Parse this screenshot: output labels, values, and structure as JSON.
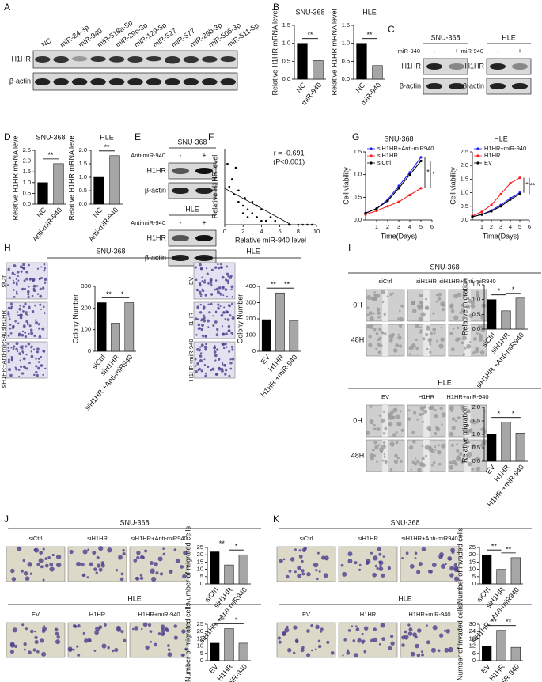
{
  "panel_labels": [
    "A",
    "B",
    "C",
    "D",
    "E",
    "F",
    "G",
    "H",
    "I",
    "J",
    "K"
  ],
  "blot_A": {
    "lanes": [
      "NC",
      "miR-24-3p",
      "miR-940",
      "miR-518a-5p",
      "miR-29c-3p",
      "miR-129-5p",
      "miR-527",
      "miR-577",
      "miR-29b-3p",
      "miR-506-3p",
      "miR-511-5p"
    ],
    "rows": [
      "H1HR",
      "β-actin"
    ]
  },
  "blot_C": {
    "groups": [
      {
        "title": "SNU-368",
        "treatment": "miR-940",
        "lanes": [
          "-",
          "+"
        ],
        "rows": [
          "H1HR",
          "β-actin"
        ]
      },
      {
        "title": "HLE",
        "treatment": "miR-940",
        "lanes": [
          "-",
          "+"
        ],
        "rows": [
          "H1HR",
          "β-actin"
        ]
      }
    ]
  },
  "blot_E": {
    "groups": [
      {
        "title": "SNU-368",
        "treatment": "Anti-miR-940",
        "lanes": [
          "-",
          "+"
        ],
        "rows": [
          "H1HR",
          "β-actin"
        ]
      },
      {
        "title": "HLE",
        "treatment": "Anti-miR-940",
        "lanes": [
          "-",
          "+"
        ],
        "rows": [
          "H1HR",
          "β-actin"
        ]
      }
    ]
  },
  "images_H": {
    "groups": [
      {
        "title": "SNU-368",
        "rows": [
          "siCtrl",
          "siH1HR",
          "siH1HR+Anti-miR940"
        ]
      },
      {
        "title": "HLE",
        "rows": [
          "EV",
          "H1HR",
          "H1HR+miR-940"
        ]
      }
    ]
  },
  "images_I": {
    "groups": [
      {
        "title": "SNU-368",
        "columns": [
          "siCtrl",
          "siH1HR",
          "siH1HR+Anti-miR940"
        ],
        "times": [
          "0H",
          "48H"
        ]
      },
      {
        "title": "HLE",
        "columns": [
          "EV",
          "H1HR",
          "H1HR+miR-940"
        ],
        "times": [
          "0H",
          "48H"
        ]
      }
    ]
  },
  "images_J": {
    "groups": [
      {
        "title": "SNU-368",
        "columns": [
          "siCtrl",
          "siH1HR",
          "siH1HR+Anti-miR940"
        ]
      },
      {
        "title": "HLE",
        "columns": [
          "EV",
          "H1HR",
          "H1HR+miR-940"
        ]
      }
    ]
  },
  "images_K": {
    "groups": [
      {
        "title": "SNU-368",
        "columns": [
          "siCtrl",
          "siH1HR",
          "siH1HR+Anti-miR940"
        ]
      },
      {
        "title": "HLE",
        "columns": [
          "EV",
          "H1HR",
          "H1HR+miR-940"
        ]
      }
    ]
  },
  "chart_data": [
    {
      "type": "bar",
      "title": "SNU-368",
      "ylabel": "Relative H1HR mRNA level",
      "categories": [
        "NC",
        "miR-940"
      ],
      "values": [
        1.0,
        0.52
      ],
      "colors": [
        "#000000",
        "#a6a6a6"
      ],
      "ylim": [
        0,
        1.5
      ],
      "yticks": [
        {
          "value": 0,
          "label": "0.0"
        },
        0.5,
        {
          "value": 1,
          "label": "1.0"
        },
        1.5
      ],
      "annotations": [
        "**"
      ]
    },
    {
      "type": "bar",
      "title": "HLE",
      "ylabel": "Relative H1HR mRNA level",
      "categories": [
        "NC",
        "miR-940"
      ],
      "values": [
        1.0,
        0.38
      ],
      "colors": [
        "#000000",
        "#a6a6a6"
      ],
      "ylim": [
        0,
        1.5
      ],
      "yticks": [
        {
          "value": 0,
          "label": "0.0"
        },
        0.5,
        {
          "value": 1,
          "label": "1.0"
        },
        1.5
      ],
      "annotations": [
        "**"
      ]
    },
    {
      "type": "bar",
      "title": "SNU-368",
      "ylabel": "Relative H1HR mRNA level",
      "categories": [
        "NC",
        "Anti-miR-940"
      ],
      "values": [
        1.0,
        1.88
      ],
      "colors": [
        "#000000",
        "#a6a6a6"
      ],
      "ylim": [
        0,
        2.5
      ],
      "yticks": [
        {
          "value": 0,
          "label": "0.0"
        },
        0.5,
        {
          "value": 1,
          "label": "1.0"
        },
        1.5,
        {
          "value": 2,
          "label": "2.0"
        },
        2.5
      ],
      "annotations": [
        "**"
      ]
    },
    {
      "type": "bar",
      "title": "HLE",
      "ylabel": "Relative H1HR mRNA level",
      "categories": [
        "NC",
        "Anti-miR-940"
      ],
      "values": [
        1.0,
        1.8
      ],
      "colors": [
        "#000000",
        "#a6a6a6"
      ],
      "ylim": [
        0,
        2.0
      ],
      "yticks": [
        {
          "value": 0,
          "label": "0.0"
        },
        0.5,
        {
          "value": 1,
          "label": "1.0"
        },
        1.5,
        {
          "value": 2,
          "label": "2.0"
        }
      ],
      "annotations": [
        "**"
      ]
    },
    {
      "type": "scatter",
      "xlabel": "Relative miR-940 level",
      "ylabel": "Relative H1HR level",
      "annotations": [
        "r = -0.691",
        "(P<0.001)"
      ],
      "x": [
        0.3,
        0.5,
        0.8,
        1.0,
        1.2,
        1.5,
        1.5,
        2.0,
        2.0,
        2.2,
        2.5,
        2.5,
        3.0,
        3.0,
        3.5,
        3.5,
        4.0,
        4.0,
        4.5,
        5.0,
        5.5,
        7.0,
        8.0,
        8.5,
        9.0,
        9.5
      ],
      "values": [
        16,
        10,
        12,
        8,
        15,
        9,
        6,
        5,
        3,
        7,
        4,
        2,
        6,
        3,
        2,
        5,
        1,
        4,
        1,
        2,
        1,
        0,
        0,
        0,
        0,
        0
      ],
      "xlim": [
        0,
        10
      ],
      "xticks": [
        0,
        2,
        4,
        6,
        8,
        10
      ],
      "ylim": [
        0,
        20
      ],
      "color": "#000000"
    },
    {
      "type": "line",
      "title": "SNU-368",
      "xlabel": "Time(Days)",
      "ylabel": "Cell viability",
      "x": [
        0,
        1,
        2,
        3,
        4,
        5
      ],
      "xlim": [
        0,
        6
      ],
      "xticks": [
        1,
        2,
        3,
        4,
        5,
        6
      ],
      "ylim": [
        0,
        1.5
      ],
      "yticks": [
        {
          "value": 0,
          "label": "0.0"
        },
        0.5,
        {
          "value": 1,
          "label": "1.0"
        },
        1.5
      ],
      "legend": "upper left",
      "annotations": [
        "*",
        "*"
      ],
      "series": [
        {
          "name": "siH1HR+Anti-miR940",
          "color": "#1f1fff",
          "values": [
            0.15,
            0.25,
            0.45,
            0.75,
            1.05,
            1.38
          ]
        },
        {
          "name": "siH1HR",
          "color": "#ff1a1a",
          "values": [
            0.12,
            0.2,
            0.3,
            0.4,
            0.55,
            0.7
          ]
        },
        {
          "name": "siCtrl",
          "color": "#000000",
          "values": [
            0.15,
            0.25,
            0.42,
            0.7,
            1.0,
            1.3
          ]
        }
      ]
    },
    {
      "type": "line",
      "title": "HLE",
      "xlabel": "Time(Days)",
      "ylabel": "Cell viability",
      "x": [
        0,
        1,
        2,
        3,
        4,
        5
      ],
      "xlim": [
        0,
        6
      ],
      "xticks": [
        1,
        2,
        3,
        4,
        5,
        6
      ],
      "ylim": [
        0,
        2.5
      ],
      "yticks": [
        {
          "value": 0,
          "label": "0.0"
        },
        0.5,
        {
          "value": 1,
          "label": "1.0"
        },
        1.5,
        {
          "value": 2,
          "label": "2.0"
        },
        2.5
      ],
      "legend": "upper left",
      "annotations": [
        "*",
        "**"
      ],
      "series": [
        {
          "name": "H1HR+miR-940",
          "color": "#1f1fff",
          "values": [
            0.12,
            0.2,
            0.35,
            0.55,
            0.8,
            1.0
          ]
        },
        {
          "name": "H1HR",
          "color": "#ff1a1a",
          "values": [
            0.15,
            0.3,
            0.55,
            0.95,
            1.35,
            1.55
          ]
        },
        {
          "name": "EV",
          "color": "#000000",
          "values": [
            0.12,
            0.2,
            0.32,
            0.5,
            0.75,
            0.95
          ]
        }
      ]
    },
    {
      "type": "bar",
      "ylabel": "Colony Number",
      "categories": [
        "siCtrl",
        "siH1HR",
        "siH1HR +Anti-miR940"
      ],
      "values": [
        225,
        130,
        225
      ],
      "colors": [
        "#000000",
        "#a6a6a6",
        "#a6a6a6"
      ],
      "ylim": [
        0,
        300
      ],
      "yticks": [
        0,
        100,
        200,
        300
      ],
      "annotations": [
        "**",
        "*"
      ]
    },
    {
      "type": "bar",
      "ylabel": "Colony Number",
      "categories": [
        "EV",
        "H1HR",
        "H1HR +miR-940"
      ],
      "values": [
        195,
        360,
        190
      ],
      "colors": [
        "#000000",
        "#a6a6a6",
        "#a6a6a6"
      ],
      "ylim": [
        0,
        400
      ],
      "yticks": [
        0,
        100,
        200,
        300,
        400
      ],
      "annotations": [
        "**",
        "**"
      ]
    },
    {
      "type": "bar",
      "ylabel": "Relative migration",
      "categories": [
        "siCtrl",
        "siH1HR",
        "siH1HR +Anti-miR940"
      ],
      "values": [
        1.0,
        0.62,
        1.05
      ],
      "colors": [
        "#000000",
        "#a6a6a6",
        "#a6a6a6"
      ],
      "ylim": [
        0,
        1.5
      ],
      "yticks": [
        {
          "value": 0,
          "label": "0.0"
        },
        0.5,
        {
          "value": 1,
          "label": "1.0"
        },
        1.5
      ],
      "annotations": [
        "*",
        "*"
      ]
    },
    {
      "type": "bar",
      "ylabel": "Relative migration",
      "categories": [
        "EV",
        "H1HR",
        "H1HR +miR-940"
      ],
      "values": [
        1.0,
        1.45,
        1.05
      ],
      "colors": [
        "#000000",
        "#a6a6a6",
        "#a6a6a6"
      ],
      "ylim": [
        0,
        2.0
      ],
      "yticks": [
        {
          "value": 0,
          "label": "0.0"
        },
        0.5,
        {
          "value": 1,
          "label": "1.0"
        },
        1.5,
        {
          "value": 2,
          "label": "2.0"
        }
      ],
      "annotations": [
        "*",
        "*"
      ]
    },
    {
      "type": "bar",
      "ylabel": "Number of migrated cells",
      "categories": [
        "siCtrl",
        "siH1HR",
        "siH1HR +Anti-miR940"
      ],
      "values": [
        22,
        13,
        20
      ],
      "colors": [
        "#000000",
        "#a6a6a6",
        "#a6a6a6"
      ],
      "ylim": [
        0,
        25
      ],
      "yticks": [
        0,
        5,
        10,
        15,
        20,
        25
      ],
      "annotations": [
        "**",
        "*"
      ]
    },
    {
      "type": "bar",
      "ylabel": "Number of migrated cells",
      "categories": [
        "EV",
        "H1HR",
        "H1HR +miR-940"
      ],
      "values": [
        12,
        22,
        12
      ],
      "colors": [
        "#000000",
        "#a6a6a6",
        "#a6a6a6"
      ],
      "ylim": [
        0,
        25
      ],
      "yticks": [
        0,
        5,
        10,
        15,
        20,
        25
      ],
      "annotations": [
        "**",
        "*"
      ]
    },
    {
      "type": "bar",
      "ylabel": "Number of invaded cells",
      "categories": [
        "siCtrl",
        "siH1HR",
        "siH1HR +Anti-miR940"
      ],
      "values": [
        20,
        10,
        18
      ],
      "colors": [
        "#000000",
        "#a6a6a6",
        "#a6a6a6"
      ],
      "ylim": [
        0,
        25
      ],
      "yticks": [
        0,
        5,
        10,
        15,
        20,
        25
      ],
      "annotations": [
        "**",
        "**"
      ]
    },
    {
      "type": "bar",
      "ylabel": "Number of invaded cells",
      "categories": [
        "EV",
        "H1HR",
        "H1HR +miR-940"
      ],
      "values": [
        12,
        25,
        11
      ],
      "colors": [
        "#000000",
        "#a6a6a6",
        "#a6a6a6"
      ],
      "ylim": [
        0,
        30
      ],
      "yticks": [
        0,
        6,
        12,
        18,
        24,
        30
      ],
      "annotations": [
        "**",
        "**"
      ]
    }
  ]
}
